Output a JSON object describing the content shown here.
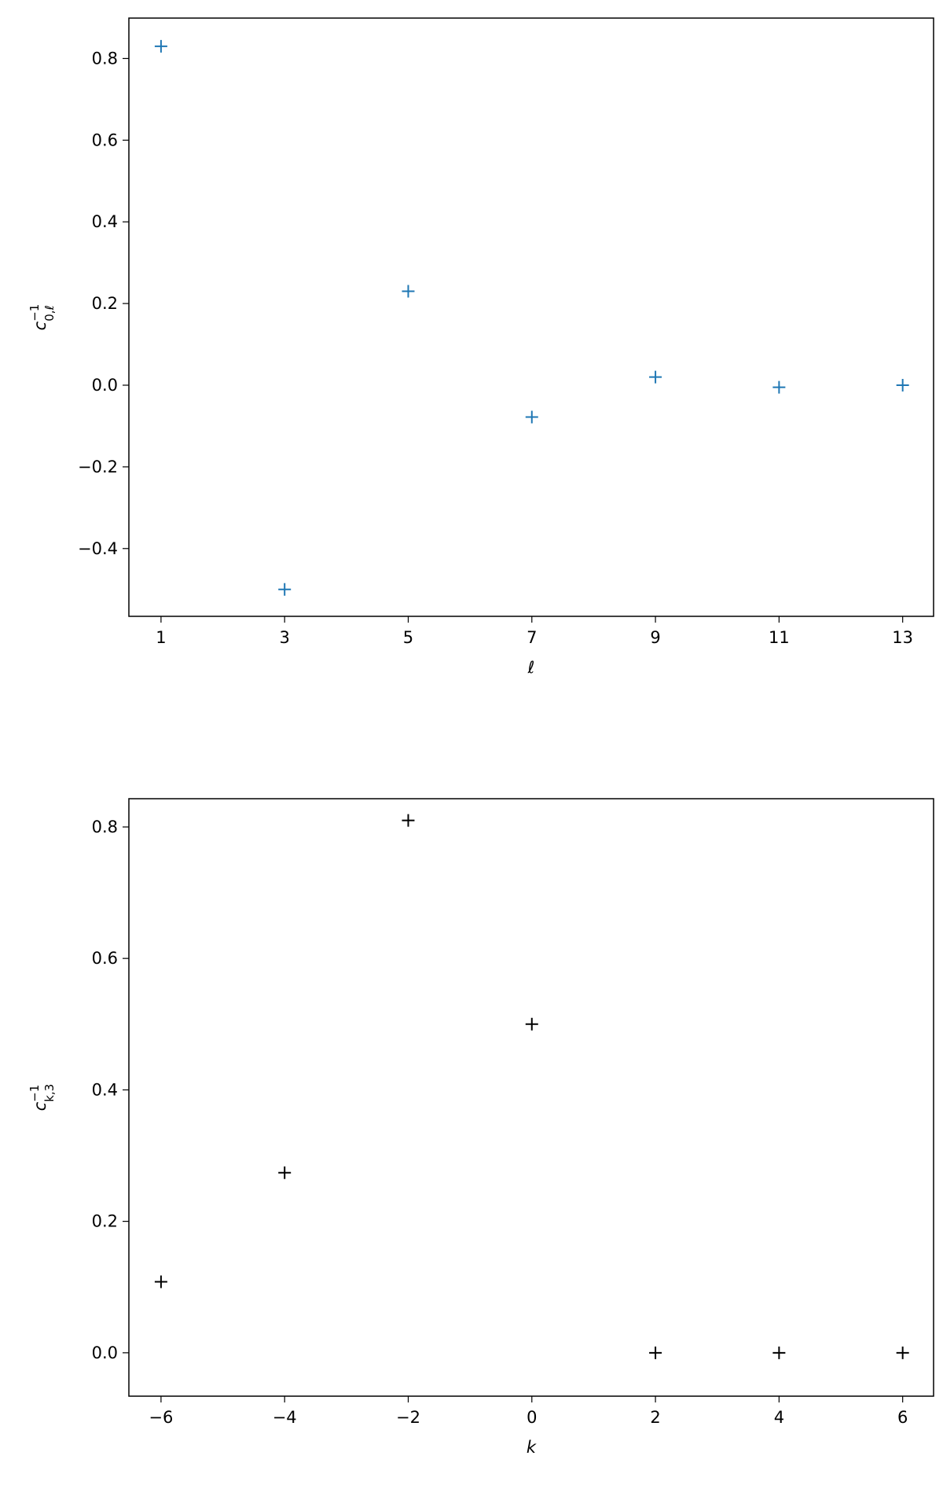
{
  "chart_data": [
    {
      "type": "scatter",
      "marker": "+",
      "color": "#1f77b4",
      "xlabel": "ℓ",
      "ylabel": {
        "base": "c",
        "sup": "−1",
        "sub": "0,ℓ"
      },
      "x": [
        1,
        3,
        5,
        7,
        9,
        11,
        13
      ],
      "values": [
        0.83,
        -0.5,
        0.23,
        -0.078,
        0.02,
        -0.005,
        0.0
      ],
      "xlim": [
        0.48,
        13.5
      ],
      "ylim": [
        -0.566,
        0.899
      ],
      "xticks": [
        1,
        3,
        5,
        7,
        9,
        11,
        13
      ],
      "yticks": [
        {
          "value": -0.4,
          "label": "−0.4"
        },
        {
          "value": -0.2,
          "label": "−0.2"
        },
        {
          "value": 0,
          "label": "0.0"
        },
        0.2,
        0.4,
        0.6,
        0.8
      ]
    },
    {
      "type": "scatter",
      "marker": "+",
      "color": "#000000",
      "xlabel": "k",
      "ylabel": {
        "base": "c",
        "sup": "−1",
        "sub": "k,3"
      },
      "x": [
        -6,
        -4,
        -2,
        0,
        2,
        4,
        6
      ],
      "values": [
        0.108,
        0.274,
        0.81,
        0.5,
        0.0,
        0.0,
        0.0
      ],
      "xlim": [
        -6.52,
        6.5
      ],
      "ylim": [
        -0.066,
        0.843
      ],
      "xticks": [
        {
          "value": -6,
          "label": "−6"
        },
        {
          "value": -4,
          "label": "−4"
        },
        {
          "value": -2,
          "label": "−2"
        },
        0,
        2,
        4,
        6
      ],
      "yticks": [
        {
          "value": 0,
          "label": "0.0"
        },
        0.2,
        0.4,
        0.6,
        0.8
      ]
    }
  ]
}
